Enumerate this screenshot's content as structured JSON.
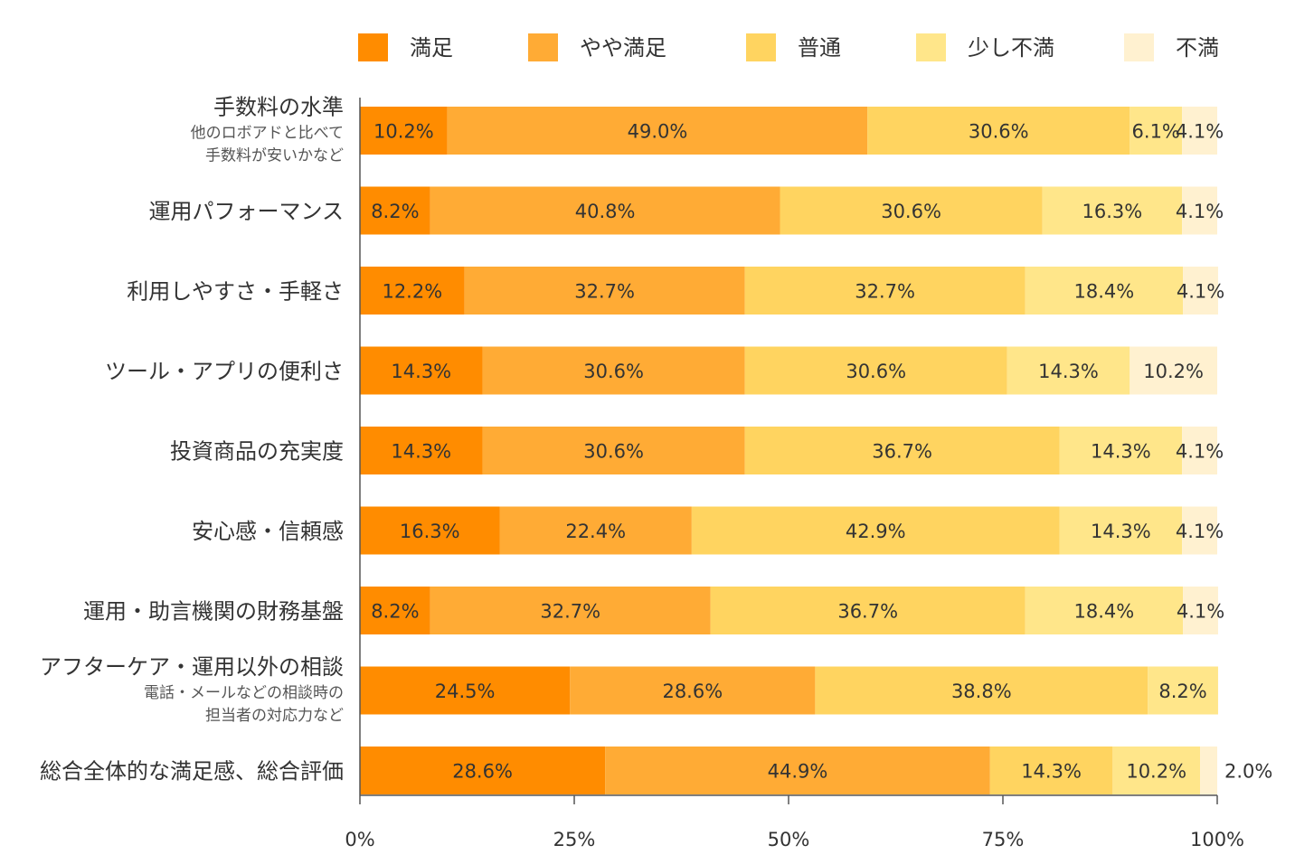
{
  "chart_data": {
    "type": "bar",
    "orientation": "horizontal",
    "stacked": true,
    "categories": [
      "手数料の水準",
      "運用パフォーマンス",
      "利用しやすさ・手軽さ",
      "ツール・アプリの便利さ",
      "投資商品の充実度",
      "安心感・信頼感",
      "運用・助言機関の財務基盤",
      "アフターケア・運用以外の相談",
      "総合全体的な満足感、総合評価"
    ],
    "category_notes": [
      [
        "他のロボアドと比べて",
        "手数料が安いかなど"
      ],
      [],
      [],
      [],
      [],
      [],
      [],
      [
        "電話・メールなどの相談時の",
        "担当者の対応力など"
      ],
      []
    ],
    "series": [
      {
        "name": "満足",
        "color": "#ff8c00",
        "values": [
          10.2,
          8.2,
          12.2,
          14.3,
          14.3,
          16.3,
          8.2,
          24.5,
          28.6
        ]
      },
      {
        "name": "やや満足",
        "color": "#ffab35",
        "values": [
          49.0,
          40.8,
          32.7,
          30.6,
          30.6,
          22.4,
          32.7,
          28.6,
          44.9
        ]
      },
      {
        "name": "普通",
        "color": "#ffd460",
        "values": [
          30.6,
          30.6,
          32.7,
          30.6,
          36.7,
          42.9,
          36.7,
          38.8,
          14.3
        ]
      },
      {
        "name": "少し不満",
        "color": "#ffe68a",
        "values": [
          6.1,
          16.3,
          18.4,
          14.3,
          14.3,
          14.3,
          18.4,
          8.2,
          10.2
        ]
      },
      {
        "name": "不満",
        "color": "#fff1d0",
        "values": [
          4.1,
          4.1,
          4.1,
          10.2,
          4.1,
          4.1,
          4.1,
          0,
          2.0
        ]
      }
    ],
    "value_labels": [
      [
        "10.2%",
        "49.0%",
        "30.6%",
        "6.1%",
        "4.1%"
      ],
      [
        "8.2%",
        "40.8%",
        "30.6%",
        "16.3%",
        "4.1%"
      ],
      [
        "12.2%",
        "32.7%",
        "32.7%",
        "18.4%",
        "4.1%"
      ],
      [
        "14.3%",
        "30.6%",
        "30.6%",
        "14.3%",
        "10.2%"
      ],
      [
        "14.3%",
        "30.6%",
        "36.7%",
        "14.3%",
        "4.1%"
      ],
      [
        "16.3%",
        "22.4%",
        "42.9%",
        "14.3%",
        "4.1%"
      ],
      [
        "8.2%",
        "32.7%",
        "36.7%",
        "18.4%",
        "4.1%"
      ],
      [
        "24.5%",
        "28.6%",
        "38.8%",
        "8.2%",
        ""
      ],
      [
        "28.6%",
        "44.9%",
        "14.3%",
        "10.2%",
        "2.0%"
      ]
    ],
    "xlim": [
      0,
      100
    ],
    "xticks": [
      0,
      25,
      50,
      75,
      100
    ],
    "xtick_labels": [
      "0%",
      "25%",
      "50%",
      "75%",
      "100%"
    ],
    "legend_position": "top",
    "grid": false
  }
}
